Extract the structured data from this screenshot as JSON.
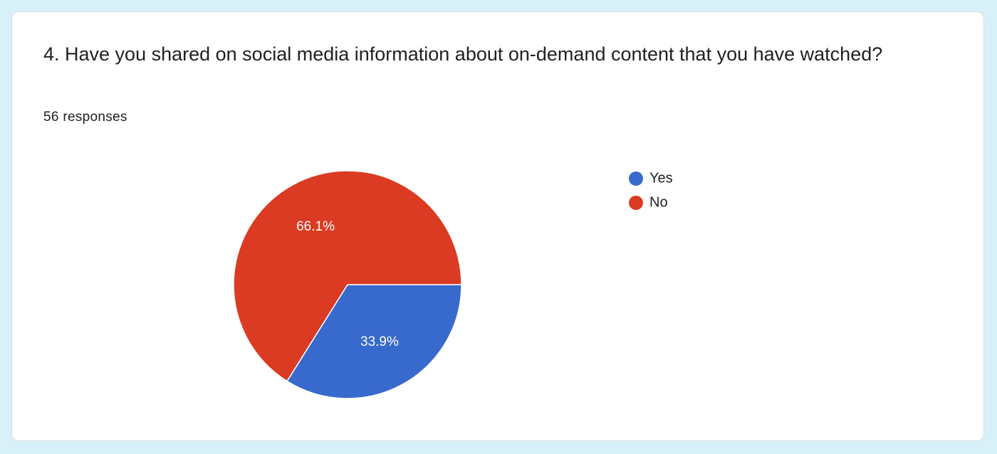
{
  "question": {
    "title": "4. Have you shared on social media information about on-demand content that you have watched?",
    "responses": "56 responses"
  },
  "chart_data": {
    "type": "pie",
    "categories": [
      "Yes",
      "No"
    ],
    "values": [
      33.9,
      66.1
    ],
    "labels": [
      "33.9%",
      "66.1%"
    ],
    "colors": [
      "#3869cc",
      "#db3b22"
    ],
    "legend_position": "right"
  }
}
